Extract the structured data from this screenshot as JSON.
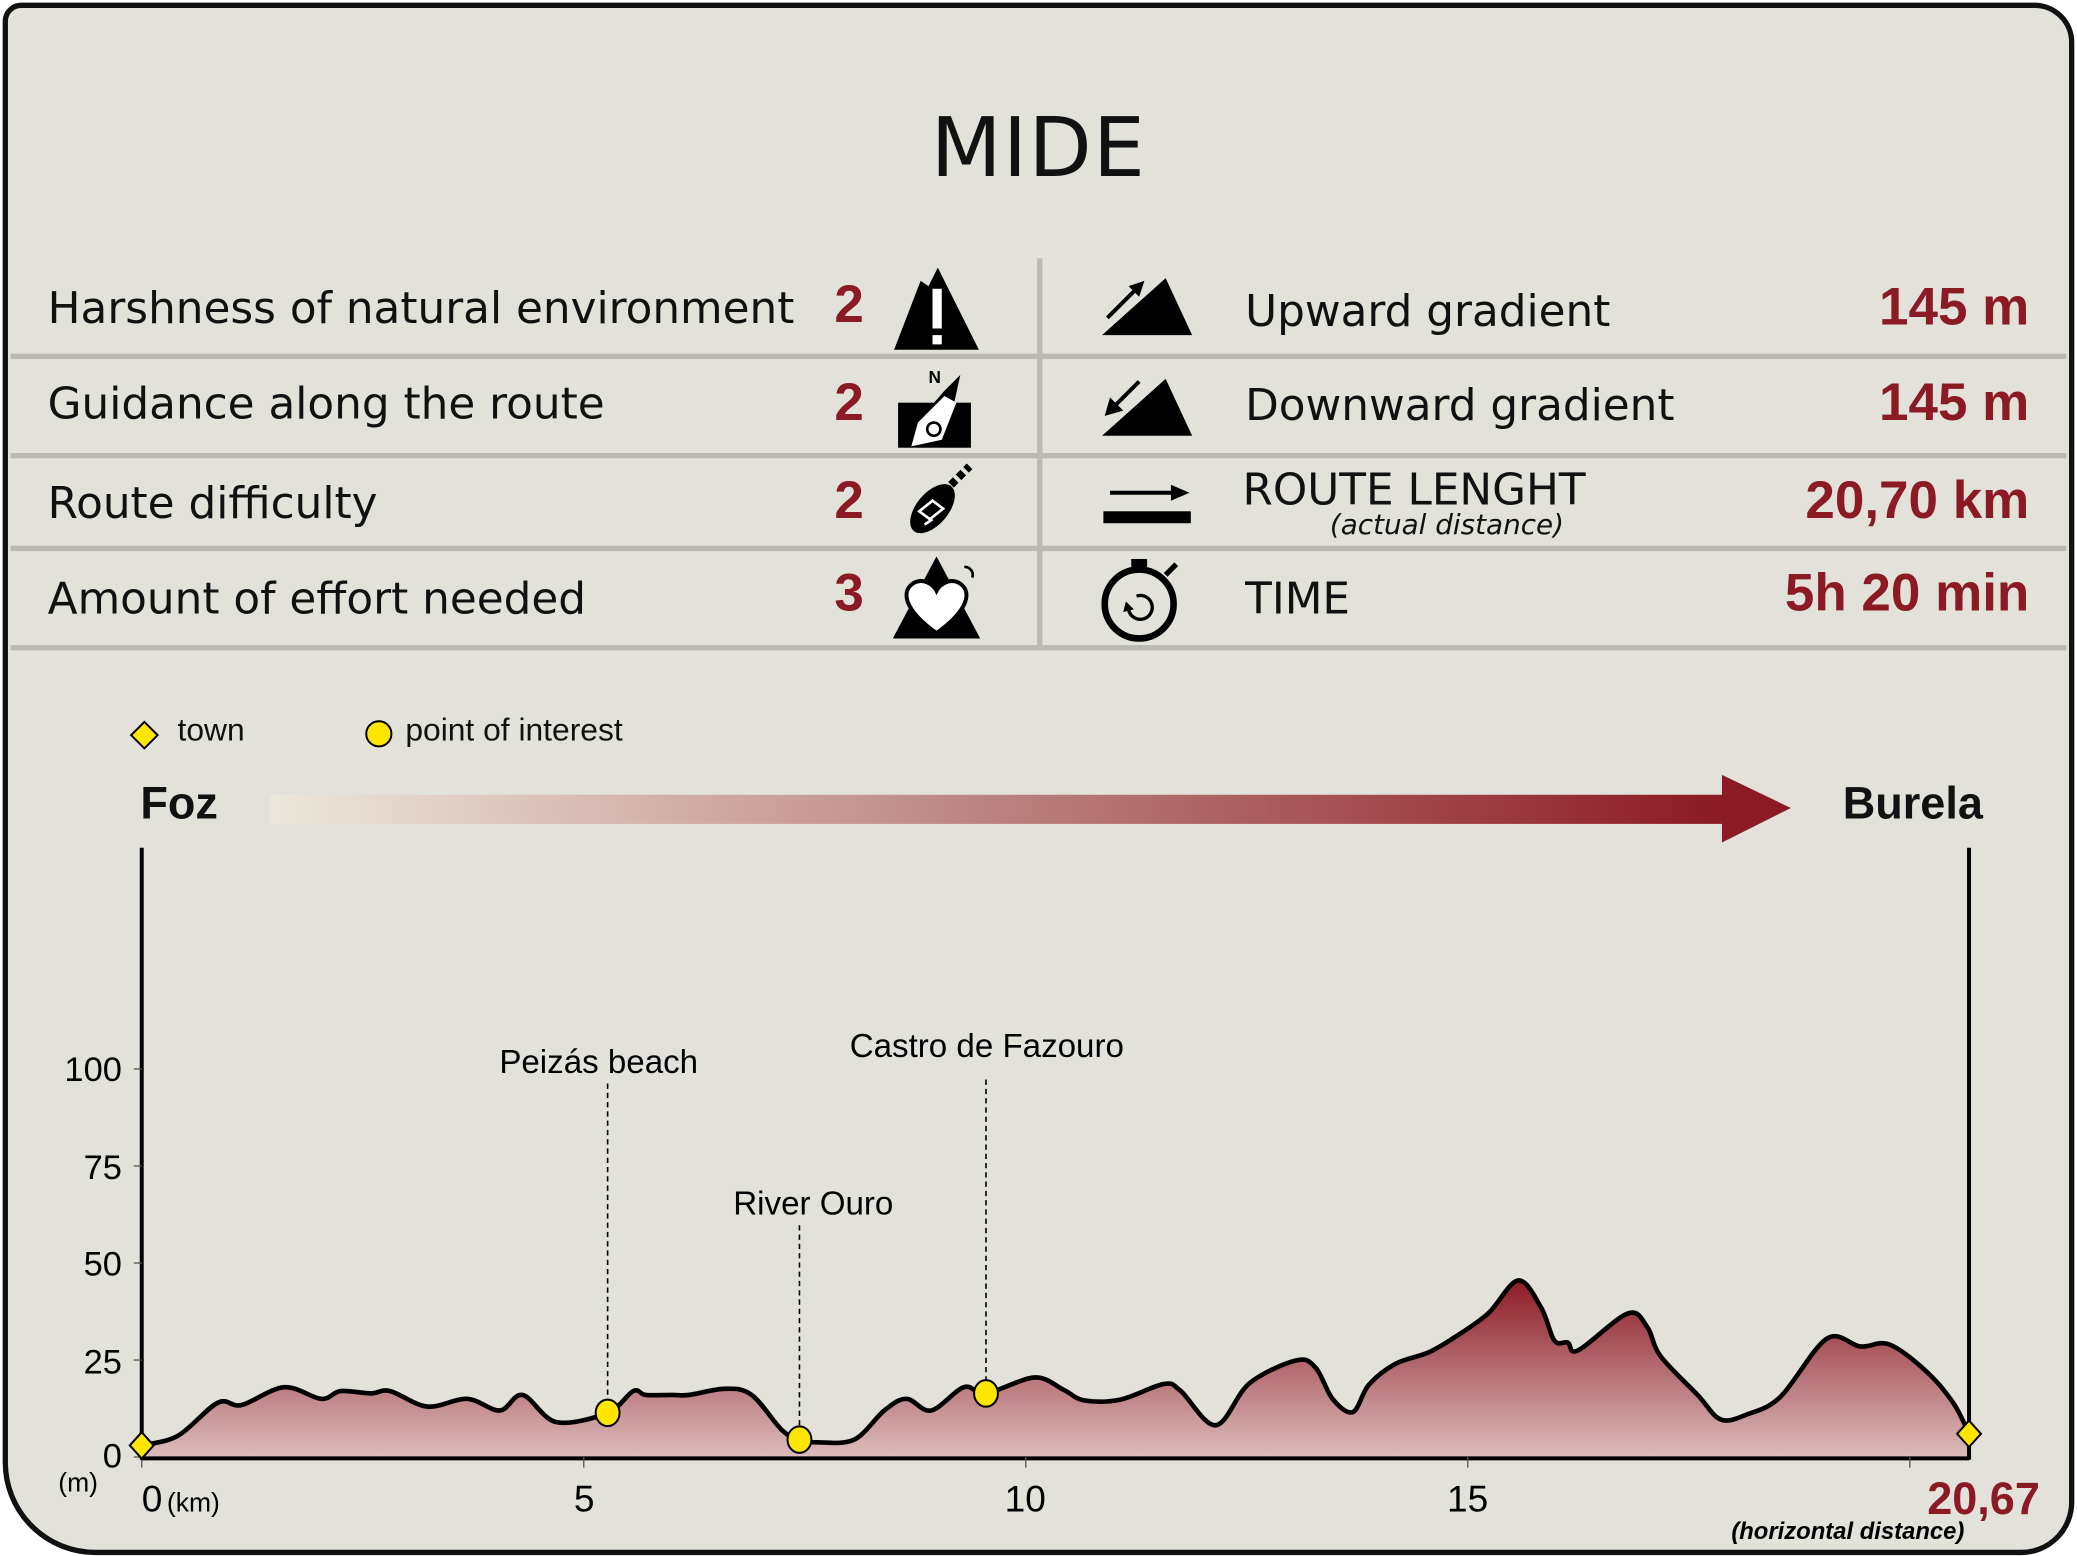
{
  "title": "MIDE",
  "mide": [
    {
      "label": "Harshness of natural environment",
      "value": "2",
      "icon": "warning-mountain-icon"
    },
    {
      "label": "Guidance along the route",
      "value": "2",
      "icon": "compass-map-icon"
    },
    {
      "label": "Route difficulty",
      "value": "2",
      "icon": "footprint-icon"
    },
    {
      "label": "Amount of effort needed",
      "value": "3",
      "icon": "heart-mountain-icon"
    }
  ],
  "stats": [
    {
      "label": "Upward gradient",
      "value": "145 m",
      "icon": "upward-slope-icon"
    },
    {
      "label": "Downward gradient",
      "value": "145 m",
      "icon": "downward-slope-icon"
    },
    {
      "label": "ROUTE LENGHT",
      "sublabel": "(actual distance)",
      "value": "20,70 km",
      "icon": "distance-arrow-icon"
    },
    {
      "label": "TIME",
      "value": "5h 20 min",
      "icon": "stopwatch-icon"
    }
  ],
  "legend": {
    "town": "town",
    "poi": "point of interest"
  },
  "route": {
    "start": "Foz",
    "end": "Burela"
  },
  "colors": {
    "accent": "#8b1a24",
    "background": "#e2e2da",
    "marker": "#ffe600",
    "divider": "#babab2"
  },
  "chart_data": {
    "type": "area",
    "xlabel": "(km)",
    "ylabel": "(m)",
    "xlim": [
      0,
      20.67
    ],
    "ylim": [
      0,
      157
    ],
    "x_ticks": [
      "0",
      "5",
      "10",
      "15"
    ],
    "x_tick_values": [
      0,
      5,
      10,
      15,
      20
    ],
    "y_ticks": [
      "0",
      "25",
      "50",
      "75",
      "100"
    ],
    "y_tick_values": [
      0,
      25,
      50,
      75,
      100
    ],
    "end_label": "20,67",
    "end_note": "(horizontal distance)",
    "grid": false,
    "profile": {
      "x": [
        0,
        0.41,
        0.86,
        1.13,
        1.61,
        2.03,
        2.25,
        2.59,
        2.81,
        3.23,
        3.68,
        4.05,
        4.31,
        4.69,
        5.27,
        5.56,
        5.7,
        6.0,
        6.19,
        6.6,
        6.9,
        7.24,
        7.44,
        7.65,
        8.06,
        8.4,
        8.65,
        8.93,
        9.3,
        9.55,
        10.1,
        10.43,
        10.66,
        11.07,
        11.56,
        11.75,
        12.15,
        12.53,
        13.06,
        13.28,
        13.47,
        13.7,
        13.88,
        14.18,
        14.56,
        14.86,
        15.23,
        15.57,
        15.83,
        15.98,
        16.13,
        16.25,
        16.81,
        17.03,
        17.18,
        17.6,
        17.86,
        18.16,
        18.54,
        19.06,
        19.44,
        19.77,
        20.19,
        20.49,
        20.67
      ],
      "y": [
        3,
        5.5,
        14,
        13.4,
        18,
        15,
        17,
        16.4,
        17,
        13,
        15,
        12,
        16,
        9,
        11.4,
        17,
        16,
        16,
        16,
        17.6,
        16,
        7,
        4.5,
        3.8,
        4.5,
        12,
        15,
        12,
        18,
        16.4,
        20.5,
        17.3,
        14.6,
        14.8,
        18.8,
        17.1,
        8.2,
        19,
        24.9,
        23,
        15,
        11.6,
        18.6,
        24,
        27,
        31,
        37,
        45.5,
        38.5,
        30,
        29.5,
        27.5,
        37,
        33.5,
        26,
        16,
        9.7,
        11,
        15.6,
        30.5,
        28.5,
        29,
        22,
        14,
        6
      ]
    },
    "towns": [
      {
        "x": 0,
        "y": 3
      },
      {
        "x": 20.67,
        "y": 6
      }
    ],
    "points_of_interest": [
      {
        "name": "Peizás beach",
        "x": 5.27,
        "y": 11.4
      },
      {
        "name": "River Ouro",
        "x": 7.44,
        "y": 4.5
      },
      {
        "name": "Castro de Fazouro",
        "x": 9.55,
        "y": 16.4
      }
    ]
  }
}
